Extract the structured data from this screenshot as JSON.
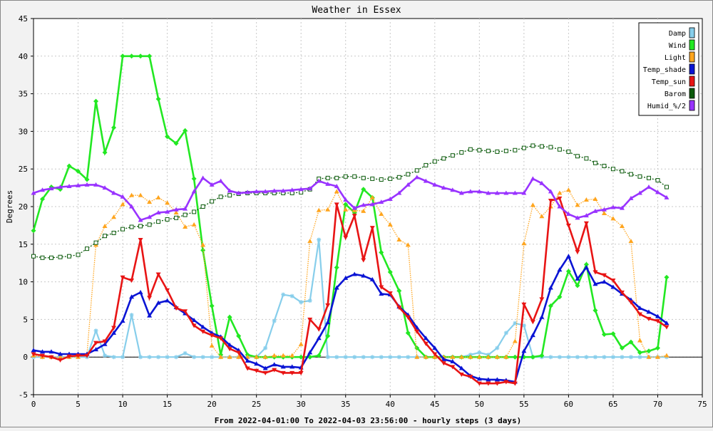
{
  "chart_data": {
    "type": "line",
    "title": "Weather in Essex",
    "ylabel": "Degrees",
    "xlabel": "From 2022-04-01:00 To 2022-04-03 23:56:00 - hourly steps (3 days)",
    "xlim": [
      0,
      75
    ],
    "ylim": [
      -5,
      45
    ],
    "x_ticks": [
      0,
      5,
      10,
      15,
      20,
      25,
      30,
      35,
      40,
      45,
      50,
      55,
      60,
      65,
      70,
      75
    ],
    "y_ticks": [
      -5,
      0,
      5,
      10,
      15,
      20,
      25,
      30,
      35,
      40,
      45
    ],
    "grid": true,
    "legend_position": "top-right",
    "series": [
      {
        "name": "Damp",
        "color": "#87ceeb",
        "marker": "star",
        "values": [
          0,
          0,
          0,
          0,
          0,
          0,
          0,
          3.5,
          0.2,
          0,
          0,
          5.6,
          0,
          0,
          0,
          0,
          0,
          0.5,
          0,
          0,
          0,
          0,
          0,
          0,
          0,
          0,
          1.2,
          4.8,
          8.3,
          8.1,
          7.3,
          7.5,
          15.6,
          0,
          0,
          0,
          0,
          0,
          0,
          0,
          0,
          0,
          0,
          0,
          0,
          0,
          0,
          0,
          0,
          0.3,
          0.6,
          0.3,
          1.2,
          3.2,
          4.5,
          4.2,
          0,
          0,
          0,
          0,
          0,
          0,
          0,
          0,
          0,
          0,
          0,
          0,
          0,
          0,
          0,
          0
        ]
      },
      {
        "name": "Wind",
        "color": "#22e822",
        "marker": "diamond",
        "values": [
          16.8,
          21,
          22.6,
          22.3,
          25.4,
          24.7,
          23.6,
          34,
          27.2,
          30.5,
          40,
          40,
          40,
          40,
          34.3,
          29.3,
          28.4,
          30.1,
          23.7,
          14.2,
          6.8,
          0.3,
          5.3,
          2.8,
          0.3,
          0,
          0,
          0,
          0,
          0,
          0,
          0,
          0.2,
          2.8,
          11.9,
          20.3,
          19.2,
          22.3,
          21.2,
          13.9,
          11.3,
          8.8,
          3.2,
          1.2,
          0,
          0,
          0,
          0,
          0,
          0,
          0,
          0,
          0,
          0,
          0,
          0,
          0,
          0.2,
          6.8,
          8,
          11.4,
          9.5,
          12.3,
          6.2,
          3,
          3.1,
          1.2,
          2,
          0.6,
          0.8,
          1.2,
          10.6
        ]
      },
      {
        "name": "Light",
        "color": "#ffa51e",
        "marker": "triangle",
        "values": [
          0.2,
          0,
          0,
          0,
          0,
          0,
          0.4,
          14.9,
          17.4,
          18.6,
          20.3,
          21.5,
          21.5,
          20.6,
          21.2,
          20.5,
          19.2,
          17.3,
          17.6,
          14.9,
          1.5,
          0,
          0,
          0,
          0,
          0,
          0,
          0.2,
          0.2,
          0.2,
          1.7,
          15.4,
          19.5,
          19.6,
          22,
          19.6,
          19.5,
          19.4,
          21.2,
          19,
          17.6,
          15.6,
          14.9,
          0,
          0,
          0,
          0,
          0,
          0,
          0,
          0,
          0,
          0,
          0,
          2.1,
          15.1,
          20.2,
          18.7,
          20,
          21.8,
          22.2,
          20.2,
          20.9,
          21,
          19.1,
          18.4,
          17.4,
          15.4,
          2.2,
          0,
          0,
          0.2
        ]
      },
      {
        "name": "Temp_shade",
        "color": "#0a14d4",
        "marker": "triangle-up",
        "values": [
          0.9,
          0.7,
          0.7,
          0.4,
          0.4,
          0.4,
          0.4,
          1,
          1.7,
          3.2,
          4.8,
          8,
          8.6,
          5.5,
          7.2,
          7.5,
          6.6,
          5.8,
          4.9,
          4,
          3.2,
          2.7,
          1.6,
          0.9,
          -0.5,
          -0.9,
          -1.5,
          -1,
          -1.3,
          -1.3,
          -1.4,
          0.6,
          2.5,
          4.6,
          9.2,
          10.5,
          11,
          10.8,
          10.3,
          8.4,
          8.3,
          6.7,
          5.6,
          3.9,
          2.5,
          1.2,
          -0.3,
          -0.6,
          -1.5,
          -2.5,
          -2.9,
          -3,
          -3,
          -3.1,
          -3.3,
          0.8,
          2.9,
          5.3,
          9.2,
          11.6,
          13.4,
          10.4,
          11.9,
          9.7,
          10,
          9.3,
          8.4,
          7.6,
          6.5,
          6,
          5.4,
          4.5
        ]
      },
      {
        "name": "Temp_sun",
        "color": "#e81414",
        "marker": "triangle-down",
        "values": [
          0.4,
          0.2,
          0,
          -0.4,
          0.1,
          0.2,
          0.2,
          1.9,
          2.1,
          3.9,
          10.6,
          10.2,
          15.6,
          7.9,
          11,
          8.9,
          6.5,
          6.1,
          4.2,
          3.4,
          2.9,
          2.5,
          1.1,
          0.6,
          -1.5,
          -1.8,
          -2.1,
          -1.7,
          -2.1,
          -2.1,
          -2.1,
          5,
          3.7,
          6.9,
          20.3,
          15.9,
          18.8,
          12.9,
          17.2,
          9.3,
          8.5,
          6.6,
          5.3,
          3.4,
          1.8,
          0.4,
          -0.8,
          -1.3,
          -2.3,
          -2.6,
          -3.5,
          -3.5,
          -3.5,
          -3.3,
          -3.5,
          7,
          4.7,
          7.7,
          20.8,
          21.1,
          17.5,
          14,
          17.8,
          11.3,
          10.9,
          10.2,
          8.6,
          7.3,
          5.7,
          5.1,
          4.8,
          4
        ]
      },
      {
        "name": "Barom",
        "color": "#0b5a0b",
        "marker": "square",
        "values": [
          13.4,
          13.2,
          13.2,
          13.3,
          13.4,
          13.6,
          14.4,
          15.2,
          16.1,
          16.5,
          17,
          17.3,
          17.4,
          17.6,
          18,
          18.3,
          18.5,
          18.9,
          19.3,
          20,
          20.7,
          21.3,
          21.5,
          21.7,
          21.8,
          21.8,
          21.8,
          21.8,
          21.8,
          21.8,
          21.9,
          22.3,
          23.7,
          23.8,
          23.8,
          24,
          24,
          23.8,
          23.7,
          23.6,
          23.7,
          23.9,
          24.3,
          24.8,
          25.5,
          26,
          26.4,
          26.8,
          27.2,
          27.6,
          27.5,
          27.4,
          27.3,
          27.4,
          27.5,
          27.8,
          28.1,
          28,
          27.9,
          27.6,
          27.3,
          26.7,
          26.4,
          25.8,
          25.4,
          25,
          24.7,
          24.3,
          24,
          23.8,
          23.5,
          22.6
        ]
      },
      {
        "name": "Humid_%/2",
        "color": "#9933ff",
        "marker": "triangle",
        "values": [
          21.8,
          22.2,
          22.4,
          22.6,
          22.7,
          22.8,
          22.9,
          22.9,
          22.5,
          21.8,
          21.3,
          20,
          18.2,
          18.6,
          19.2,
          19.3,
          19.6,
          19.7,
          22,
          23.8,
          22.9,
          23.4,
          22.1,
          21.8,
          21.9,
          22,
          22,
          22.1,
          22.1,
          22.2,
          22.3,
          22.4,
          23.4,
          23,
          22.7,
          20.9,
          19.8,
          20.2,
          20.3,
          20.6,
          21,
          21.8,
          22.9,
          23.9,
          23.4,
          22.9,
          22.5,
          22.2,
          21.8,
          22,
          22,
          21.8,
          21.8,
          21.8,
          21.8,
          21.8,
          23.7,
          23.1,
          22,
          20,
          19,
          18.5,
          18.8,
          19.4,
          19.6,
          19.9,
          19.8,
          21.1,
          21.8,
          22.6,
          21.9,
          21.2
        ]
      }
    ]
  }
}
